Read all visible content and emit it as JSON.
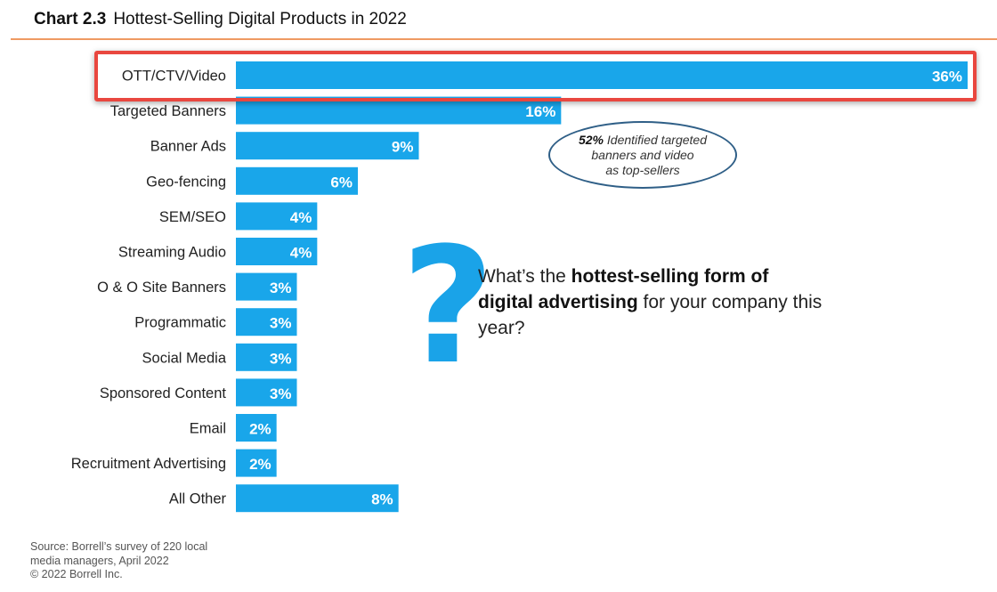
{
  "title": {
    "label": "Chart 2.3",
    "text": "Hottest-Selling Digital Products in 2022"
  },
  "chart_data": {
    "type": "bar",
    "orientation": "horizontal",
    "categories": [
      "OTT/CTV/Video",
      "Targeted Banners",
      "Banner Ads",
      "Geo-fencing",
      "SEM/SEO",
      "Streaming Audio",
      "O & O Site Banners",
      "Programmatic",
      "Social Media",
      "Sponsored Content",
      "Email",
      "Recruitment Advertising",
      "All Other"
    ],
    "values": [
      36,
      16,
      9,
      6,
      4,
      4,
      3,
      3,
      3,
      3,
      2,
      2,
      8
    ],
    "value_labels": [
      "36%",
      "16%",
      "9%",
      "6%",
      "4%",
      "4%",
      "3%",
      "3%",
      "3%",
      "3%",
      "2%",
      "2%",
      "8%"
    ],
    "xlim": [
      0,
      36
    ],
    "bar_color": "#19a6ea",
    "highlighted_category": "OTT/CTV/Video",
    "highlight_color": "#e9473f",
    "grid": false,
    "legend": "none"
  },
  "callout": {
    "percent": "52%",
    "lines": [
      "Identified targeted",
      "banners and video",
      "as top-sellers"
    ]
  },
  "question": {
    "mark": "?",
    "mark_color": "#1aa3e8",
    "part1": "What’s the ",
    "bold": "hottest-selling form of digital advertising",
    "part2": " for your company this year?"
  },
  "source": {
    "line1": "Source: Borrell’s survey of 220 local",
    "line2": "media managers, April 2022",
    "line3": "© 2022 Borrell Inc."
  }
}
